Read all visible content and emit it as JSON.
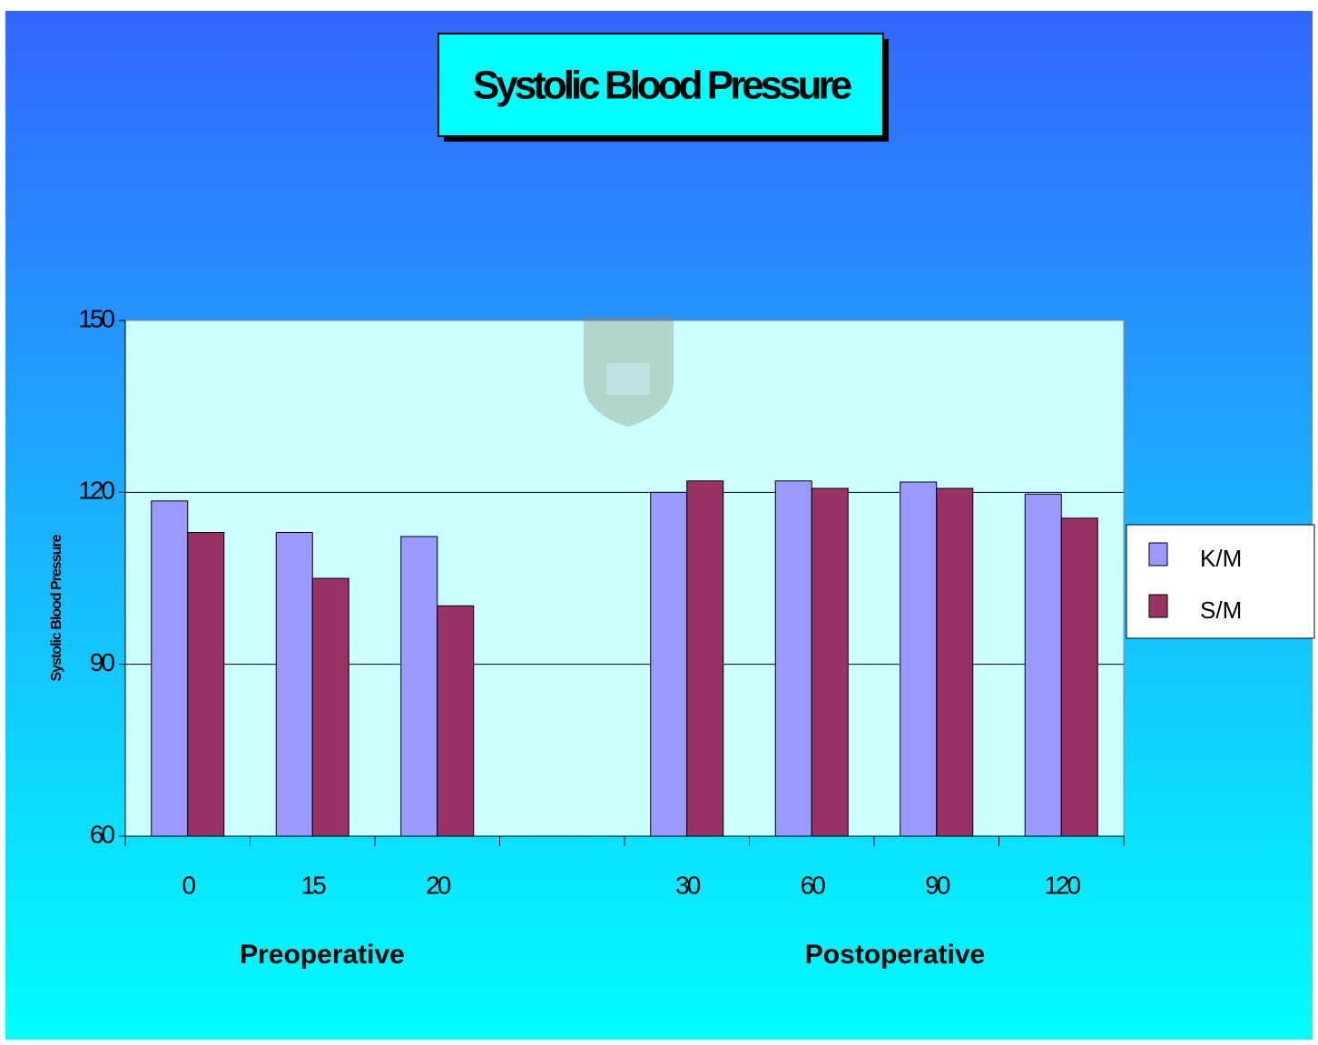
{
  "chart_data": {
    "type": "bar",
    "title": "Systolic Blood Pressure",
    "y_label": "Systolic Blood Pressure",
    "categories": [
      "0",
      "15",
      "20",
      null,
      "30",
      "60",
      "90",
      "120"
    ],
    "series": [
      {
        "name": "K/M",
        "color": "#9999ff",
        "values": [
          118.5,
          113,
          112.3,
          null,
          120,
          122,
          121.8,
          119.7
        ]
      },
      {
        "name": "S/M",
        "color": "#993366",
        "values": [
          113,
          105,
          100.2,
          null,
          122,
          120.7,
          120.7,
          115.5
        ]
      }
    ],
    "annotations": [
      "Preoperative",
      "Postoperative"
    ],
    "ylim": [
      60,
      150
    ],
    "yticks": [
      60,
      90,
      120,
      150
    ],
    "grid": true,
    "legend": "right"
  }
}
